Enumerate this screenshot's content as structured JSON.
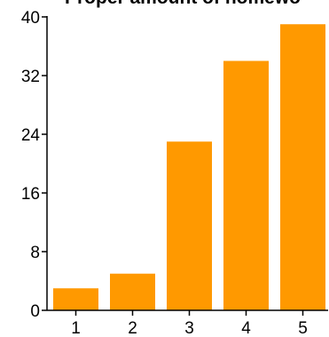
{
  "chart_data": {
    "type": "bar",
    "title": "Proper amount of homewo",
    "categories": [
      "1",
      "2",
      "3",
      "4",
      "5"
    ],
    "values": [
      3,
      5,
      23,
      34,
      39
    ],
    "xlabel": "",
    "ylabel": "",
    "ylim": [
      0,
      40
    ],
    "yticks": [
      0,
      8,
      16,
      24,
      32,
      40
    ],
    "grid": false,
    "legend": "none",
    "bar_color": "#ff9900"
  }
}
